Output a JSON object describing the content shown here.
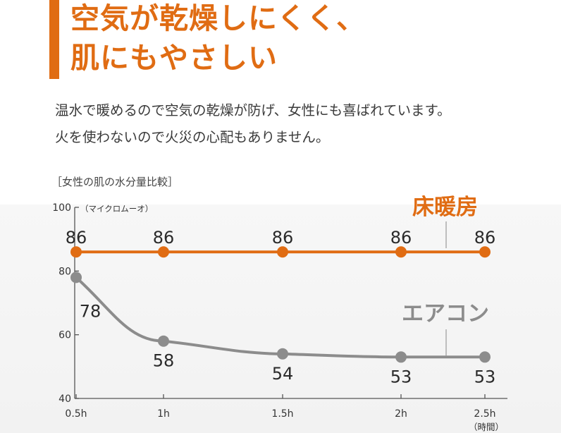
{
  "header": {
    "line1": "空気が乾燥しにくく、",
    "line2": "肌にもやさしい"
  },
  "body": {
    "line1": "温水で暖めるので空気の乾燥が防げ、女性にも喜ばれています。",
    "line2": "火を使わないので火災の心配もありません。"
  },
  "colors": {
    "accent": "#e06c13",
    "gray_series": "#8c8c8c"
  },
  "chart_data": {
    "type": "line",
    "title": "［女性の肌の水分量比較］",
    "ylabel": "（マイクロムーオ）",
    "xlabel": "（時間）",
    "categories": [
      "0.5h",
      "1h",
      "1.5h",
      "2h",
      "2.5h"
    ],
    "x": [
      0.5,
      1,
      1.5,
      2,
      2.5
    ],
    "ylim": [
      40,
      100
    ],
    "yticks": [
      40,
      60,
      80,
      100
    ],
    "grid": false,
    "series": [
      {
        "name": "床暖房",
        "values": [
          86,
          86,
          86,
          86,
          86
        ],
        "color": "#e06c13"
      },
      {
        "name": "エアコン",
        "values": [
          78,
          58,
          54,
          53,
          53
        ],
        "color": "#8c8c8c"
      }
    ]
  }
}
